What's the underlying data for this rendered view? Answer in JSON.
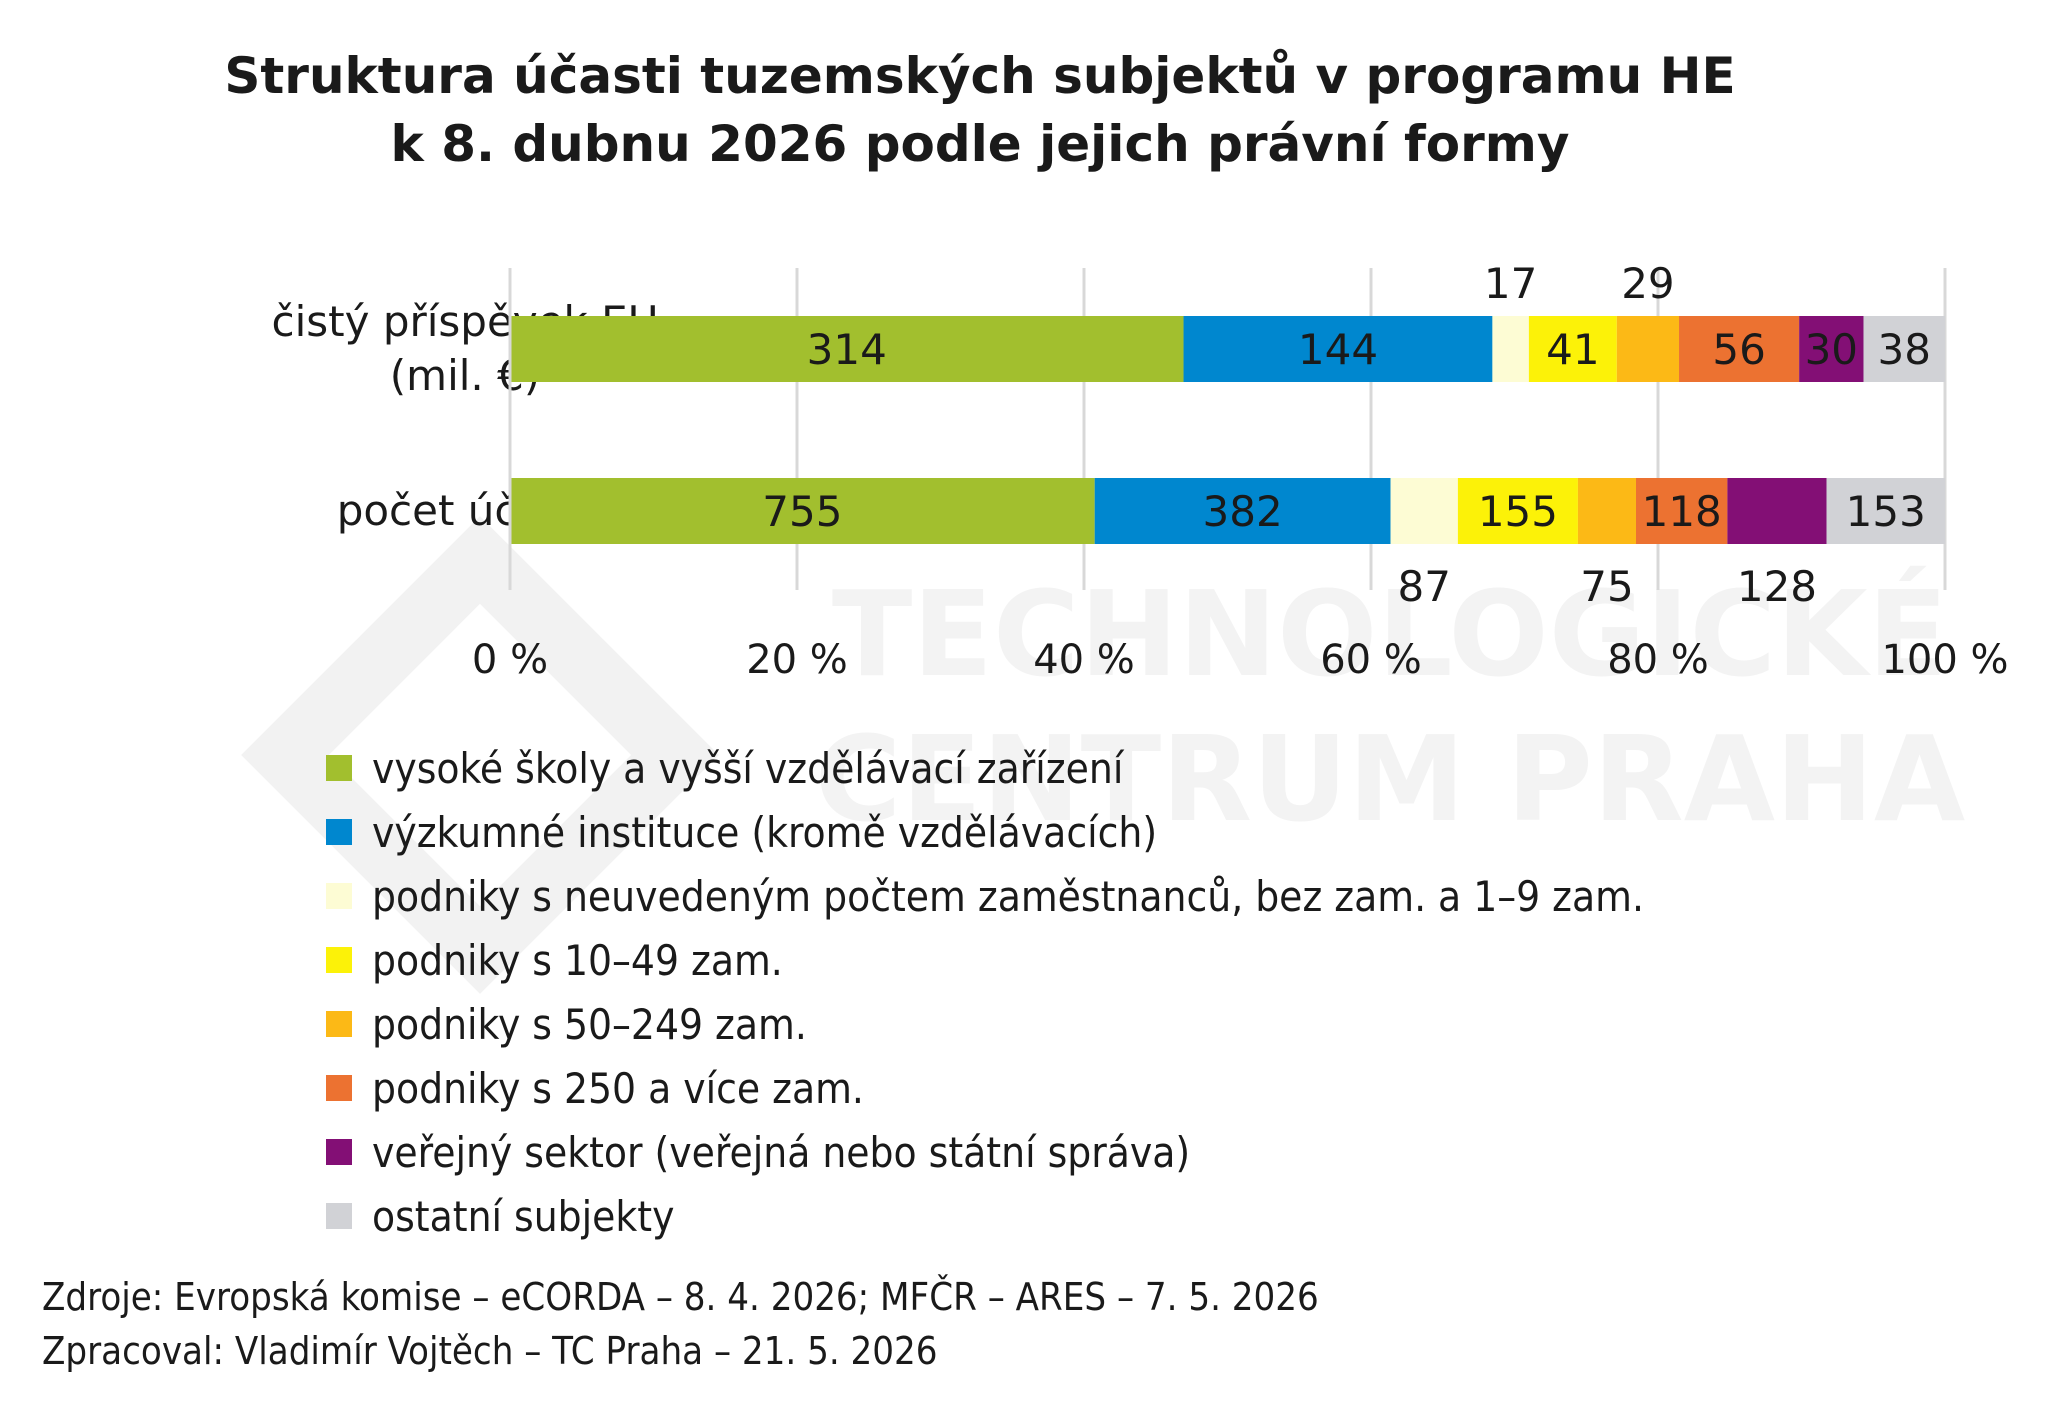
{
  "chart_data": {
    "type": "bar",
    "orientation": "horizontal",
    "stacked": true,
    "normalized": "percent",
    "title": [
      "Struktura účasti tuzemských subjektů v programu HE",
      "k 8. dubnu 2026 podle jejich právní formy"
    ],
    "categories": [
      "čistý příspěvek EU (mil. €)",
      "počet účastí"
    ],
    "category_lines": [
      [
        "čistý příspěvek EU",
        "(mil. €)"
      ],
      [
        "počet účastí"
      ]
    ],
    "series": [
      {
        "name": "vysoké školy a vyšší vzdělávací zařízení",
        "color": "#a2bf2e",
        "values": [
          314,
          755
        ],
        "labels": [
          "314",
          "755"
        ],
        "label_pos": [
          "in",
          "in"
        ]
      },
      {
        "name": "výzkumné instituce (kromě vzdělávacích)",
        "color": "#0087cf",
        "values": [
          144,
          382
        ],
        "labels": [
          "144",
          "382"
        ],
        "label_pos": [
          "in",
          "in"
        ]
      },
      {
        "name": "podniky s neuvedeným počtem zaměstnanců, bez zam. a 1–9 zam.",
        "color": "#fdfcd4",
        "values": [
          17,
          87
        ],
        "labels": [
          "17",
          "87"
        ],
        "label_pos": [
          "above",
          "below"
        ]
      },
      {
        "name": "podniky s 10–49 zam.",
        "color": "#fcf208",
        "values": [
          41,
          155
        ],
        "labels": [
          "41",
          "155"
        ],
        "label_pos": [
          "in",
          "in"
        ]
      },
      {
        "name": "podniky s 50–249 zam.",
        "color": "#fcb916",
        "values": [
          29,
          75
        ],
        "labels": [
          "29",
          "75"
        ],
        "label_pos": [
          "above",
          "below"
        ]
      },
      {
        "name": "podniky s 250 a více zam.",
        "color": "#ec7231",
        "values": [
          56,
          118
        ],
        "labels": [
          "56",
          "118"
        ],
        "label_pos": [
          "in",
          "in"
        ]
      },
      {
        "name": "veřejný sektor (veřejná nebo státní správa)",
        "color": "#830f75",
        "values": [
          30,
          128
        ],
        "labels": [
          "30",
          "128"
        ],
        "label_pos": [
          "in",
          "below"
        ]
      },
      {
        "name": "ostatní subjekty",
        "color": "#d1d2d6",
        "values": [
          38,
          153
        ],
        "labels": [
          "38",
          "153"
        ],
        "label_pos": [
          "in",
          "in"
        ]
      }
    ],
    "x_ticks": [
      "0 %",
      "20 %",
      "40 %",
      "60 %",
      "80 %",
      "100 %"
    ],
    "xlim": [
      0,
      100
    ],
    "grid": true,
    "legend": "bottom",
    "label_color": "#1a1a1a",
    "grid_color": "#d8d8d8"
  },
  "watermark": {
    "lines": [
      "TECHNOLOGICKÉ",
      "CENTRUM PRAHA"
    ],
    "color": "#f3f3f3"
  },
  "footer": {
    "source": "Zdroje: Evropská komise – eCORDA – 8. 4. 2026; MFČR – ARES – 7. 5. 2026",
    "author": "Zpracoval: Vladimír Vojtěch – TC Praha – 21. 5. 2026"
  }
}
